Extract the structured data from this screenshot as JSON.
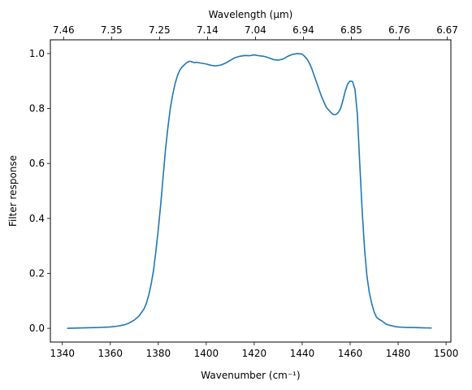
{
  "chart_data": {
    "type": "line",
    "title": "",
    "xlabel": "Wavenumber (cm⁻¹)",
    "ylabel": "Filter response",
    "top_xlabel": "Wavelength (μm)",
    "xlim": [
      1335,
      1502
    ],
    "ylim": [
      -0.05,
      1.05
    ],
    "x_ticks": [
      1340,
      1360,
      1380,
      1400,
      1420,
      1440,
      1460,
      1480,
      1500
    ],
    "y_ticks": [
      0.0,
      0.2,
      0.4,
      0.6,
      0.8,
      1.0
    ],
    "y_tick_labels": [
      "0.0",
      "0.2",
      "0.4",
      "0.6",
      "0.8",
      "1.0"
    ],
    "top_axis_ticks": [
      {
        "x": 1340.5,
        "label": "7.46"
      },
      {
        "x": 1360.5,
        "label": "7.35"
      },
      {
        "x": 1380.5,
        "label": "7.25"
      },
      {
        "x": 1400.5,
        "label": "7.14"
      },
      {
        "x": 1420.5,
        "label": "7.04"
      },
      {
        "x": 1440.5,
        "label": "6.94"
      },
      {
        "x": 1460.5,
        "label": "6.85"
      },
      {
        "x": 1480.5,
        "label": "6.76"
      },
      {
        "x": 1500.5,
        "label": "6.67"
      }
    ],
    "grid": false,
    "series": [
      {
        "name": "",
        "color": "#1f77b4",
        "x": [
          1342,
          1350,
          1355,
          1360,
          1363,
          1366,
          1368,
          1370,
          1372,
          1374,
          1375,
          1376,
          1377,
          1378,
          1379,
          1380,
          1381,
          1382,
          1383,
          1384,
          1385,
          1386,
          1387,
          1388,
          1389,
          1390,
          1391,
          1392,
          1393,
          1394,
          1395,
          1396,
          1398,
          1400,
          1402,
          1404,
          1406,
          1408,
          1410,
          1412,
          1414,
          1416,
          1418,
          1420,
          1422,
          1424,
          1426,
          1428,
          1430,
          1432,
          1434,
          1436,
          1438,
          1440,
          1441,
          1442,
          1443,
          1444,
          1446,
          1448,
          1450,
          1452,
          1453,
          1454,
          1455,
          1456,
          1457,
          1458,
          1459,
          1460,
          1461,
          1462,
          1463,
          1464,
          1465,
          1466,
          1467,
          1468,
          1469,
          1470,
          1471,
          1472,
          1473,
          1474,
          1475,
          1476,
          1477,
          1478,
          1479,
          1480,
          1482,
          1484,
          1486,
          1490,
          1494
        ],
        "y": [
          0.0,
          0.002,
          0.003,
          0.005,
          0.008,
          0.013,
          0.02,
          0.03,
          0.045,
          0.07,
          0.09,
          0.12,
          0.16,
          0.21,
          0.28,
          0.36,
          0.45,
          0.55,
          0.65,
          0.73,
          0.8,
          0.85,
          0.89,
          0.92,
          0.94,
          0.952,
          0.96,
          0.968,
          0.972,
          0.97,
          0.967,
          0.968,
          0.965,
          0.962,
          0.957,
          0.955,
          0.958,
          0.965,
          0.975,
          0.985,
          0.99,
          0.993,
          0.992,
          0.995,
          0.992,
          0.99,
          0.985,
          0.978,
          0.976,
          0.98,
          0.99,
          0.997,
          1.0,
          0.998,
          0.99,
          0.98,
          0.965,
          0.945,
          0.895,
          0.845,
          0.805,
          0.785,
          0.778,
          0.778,
          0.785,
          0.8,
          0.83,
          0.865,
          0.89,
          0.9,
          0.898,
          0.87,
          0.78,
          0.6,
          0.43,
          0.29,
          0.19,
          0.13,
          0.09,
          0.06,
          0.04,
          0.033,
          0.028,
          0.022,
          0.015,
          0.012,
          0.01,
          0.008,
          0.006,
          0.005,
          0.004,
          0.003,
          0.003,
          0.002,
          0.001
        ]
      }
    ]
  }
}
